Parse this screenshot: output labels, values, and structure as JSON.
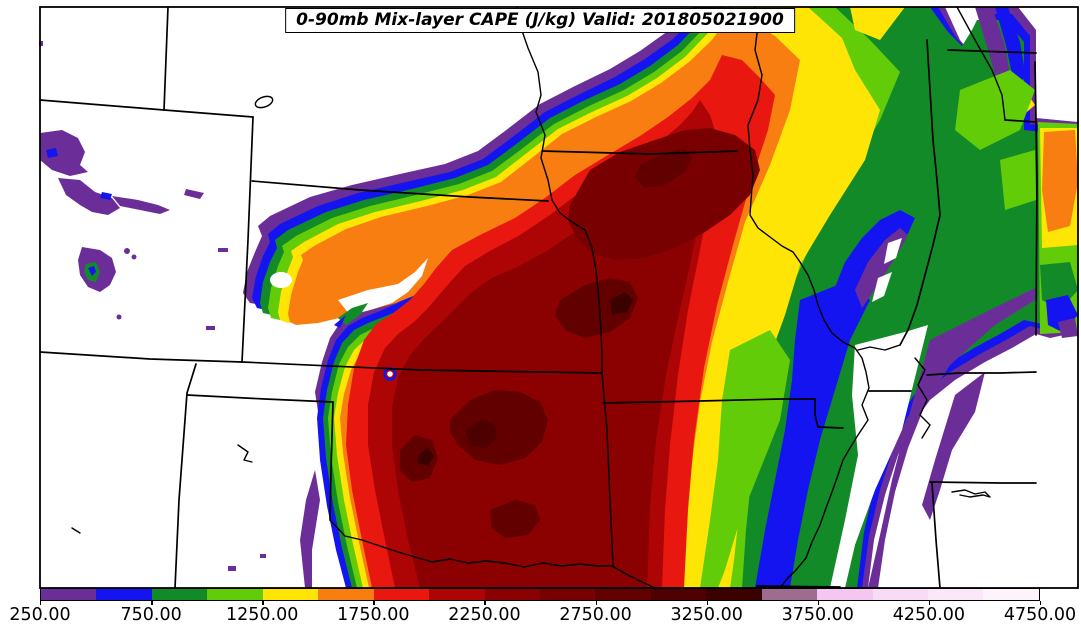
{
  "title": {
    "text": "0-90mb Mix-layer CAPE (J/kg) Valid: 201805021900"
  },
  "colorbar": {
    "units": "J/kg",
    "min": 250,
    "max": 4750,
    "step": 250,
    "tick_labels": [
      "250.00",
      "750.00",
      "1250.00",
      "1750.00",
      "2250.00",
      "2750.00",
      "3250.00",
      "3750.00",
      "4250.00",
      "4750.00"
    ],
    "segments": [
      {
        "from": 250,
        "to": 500,
        "color": "#6B2E99"
      },
      {
        "from": 500,
        "to": 750,
        "color": "#1414F0"
      },
      {
        "from": 750,
        "to": 1000,
        "color": "#128A28"
      },
      {
        "from": 1000,
        "to": 1250,
        "color": "#62CC09"
      },
      {
        "from": 1250,
        "to": 1500,
        "color": "#FFE505"
      },
      {
        "from": 1500,
        "to": 1750,
        "color": "#F87E12"
      },
      {
        "from": 1750,
        "to": 2000,
        "color": "#E81810"
      },
      {
        "from": 2000,
        "to": 2250,
        "color": "#AD0505"
      },
      {
        "from": 2250,
        "to": 2500,
        "color": "#8B0000"
      },
      {
        "from": 2500,
        "to": 2750,
        "color": "#780000"
      },
      {
        "from": 2750,
        "to": 3000,
        "color": "#620000"
      },
      {
        "from": 3000,
        "to": 3250,
        "color": "#4E0000"
      },
      {
        "from": 3250,
        "to": 3500,
        "color": "#3B0000"
      },
      {
        "from": 3500,
        "to": 3750,
        "color": "#9C6D8E"
      },
      {
        "from": 3750,
        "to": 4000,
        "color": "#F4C7F2"
      },
      {
        "from": 4000,
        "to": 4250,
        "color": "#F8DCF6"
      },
      {
        "from": 4250,
        "to": 4500,
        "color": "#FAE8F8"
      },
      {
        "from": 4500,
        "to": 4750,
        "color": "#FCF3FB"
      }
    ]
  },
  "chart_data": {
    "type": "filled_contour_map",
    "variable": "0-90mb Mix-layer CAPE",
    "units": "J/kg",
    "valid_time": "201805021900",
    "contour_levels": [
      250,
      500,
      750,
      1000,
      1250,
      1500,
      1750,
      2000,
      2250,
      2500,
      2750,
      3000,
      3250,
      3500,
      3750,
      4000,
      4250,
      4500,
      4750
    ],
    "palette": [
      "#6B2E99",
      "#1414F0",
      "#128A28",
      "#62CC09",
      "#FFE505",
      "#F87E12",
      "#E81810",
      "#AD0505",
      "#8B0000",
      "#780000",
      "#620000",
      "#4E0000",
      "#3B0000",
      "#9C6D8E",
      "#F4C7F2",
      "#F8DCF6",
      "#FAE8F8",
      "#FCF3FB"
    ],
    "legend_position": "bottom",
    "max_depicted_value_range": "3250-3500"
  }
}
